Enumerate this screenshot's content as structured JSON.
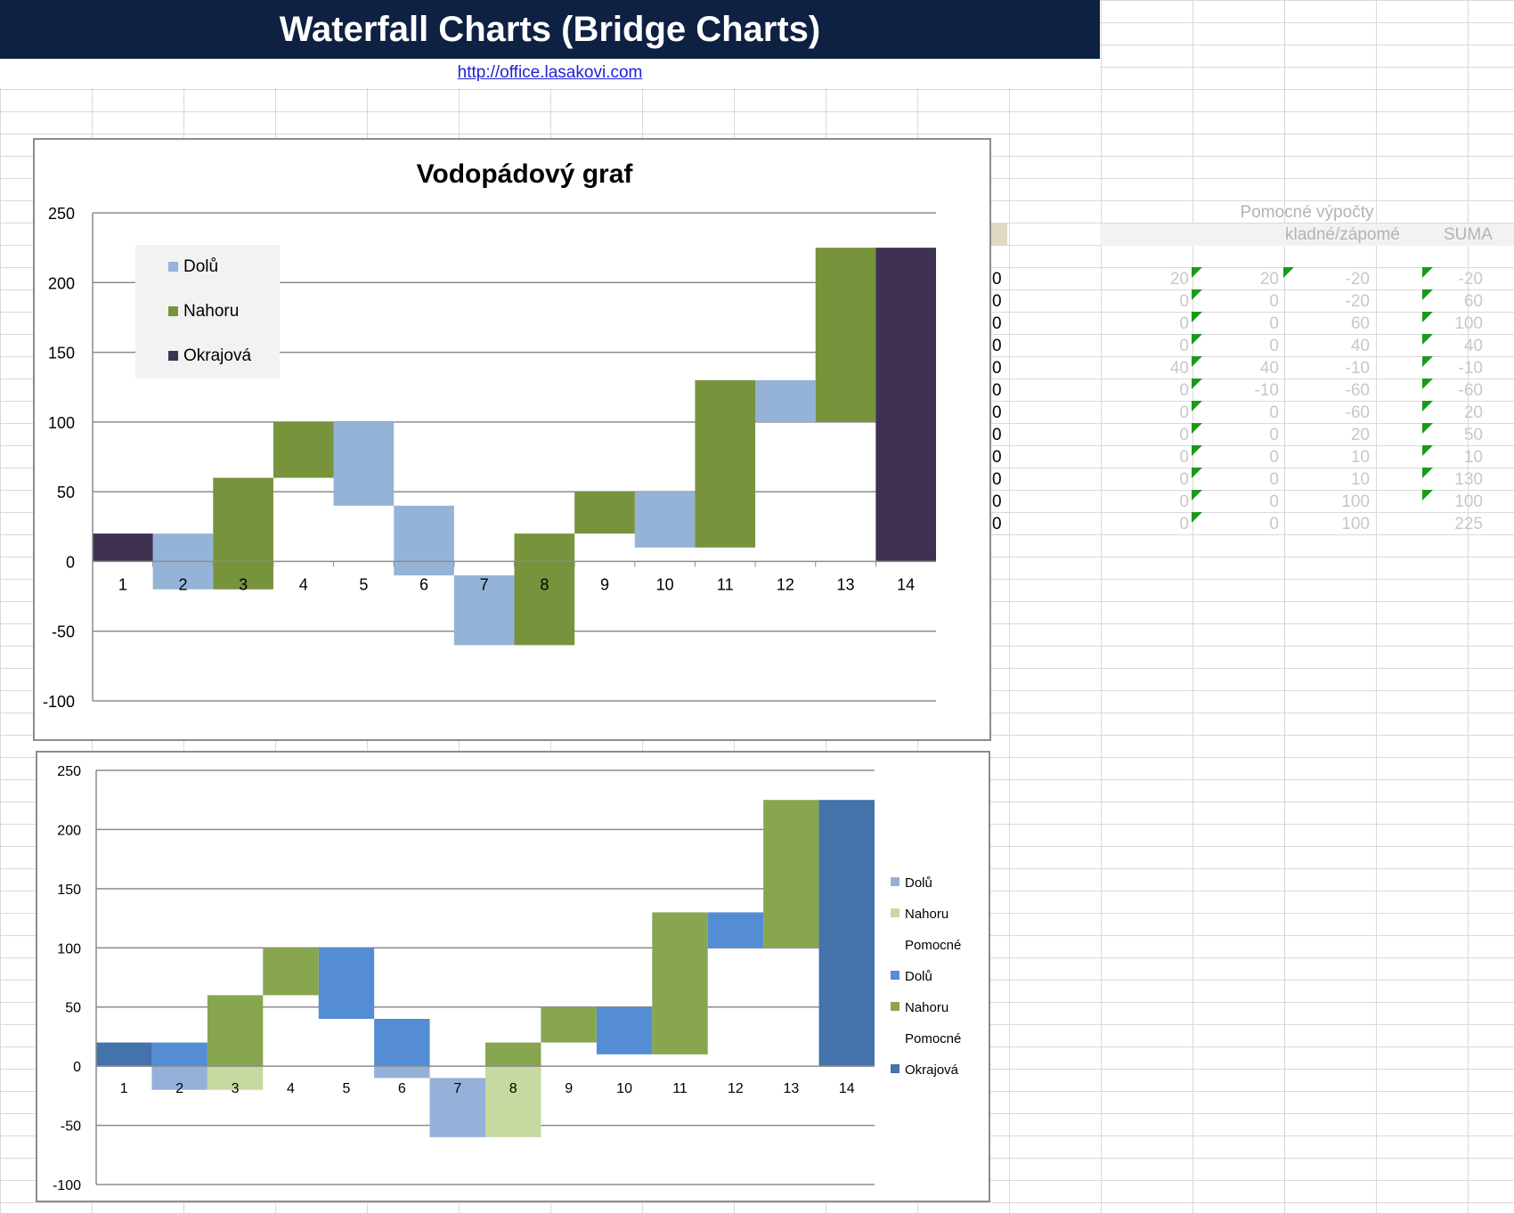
{
  "banner": {
    "title": "Waterfall Charts (Bridge Charts)"
  },
  "link": {
    "url_text": "http://office.lasakovi.com"
  },
  "colors": {
    "banner_bg": "#0f2142",
    "c1_down": "#95b3d7",
    "c1_up": "#77933c",
    "c1_edge": "#3f3151",
    "c2_down_light": "#95b1d9",
    "c2_up_light": "#c5d9a0",
    "c2_down": "#548dd4",
    "c2_up": "#88a550",
    "c2_edge": "#4472aa"
  },
  "helper": {
    "title": "Pomocné výpočty",
    "col_headers": [
      "kladné/zápomé",
      "SUMA"
    ],
    "zeros": [
      "0",
      "0",
      "0",
      "0",
      "0",
      "0",
      "0",
      "0",
      "0",
      "0",
      "0",
      "0"
    ],
    "rows": [
      [
        "20",
        "20",
        "-20",
        "-20"
      ],
      [
        "0",
        "0",
        "-20",
        "60"
      ],
      [
        "0",
        "0",
        "60",
        "100"
      ],
      [
        "0",
        "0",
        "40",
        "40"
      ],
      [
        "40",
        "40",
        "-10",
        "-10"
      ],
      [
        "0",
        "-10",
        "-60",
        "-60"
      ],
      [
        "0",
        "0",
        "-60",
        "20"
      ],
      [
        "0",
        "0",
        "20",
        "50"
      ],
      [
        "0",
        "0",
        "10",
        "10"
      ],
      [
        "0",
        "0",
        "10",
        "130"
      ],
      [
        "0",
        "0",
        "100",
        "100"
      ],
      [
        "0",
        "0",
        "100",
        "225"
      ]
    ]
  },
  "chart_data": [
    {
      "type": "bar",
      "subtype": "stacked-waterfall",
      "title": "Vodopádový graf",
      "categories": [
        "1",
        "2",
        "3",
        "4",
        "5",
        "6",
        "7",
        "8",
        "9",
        "10",
        "11",
        "12",
        "13",
        "14"
      ],
      "ylim": [
        -100,
        250
      ],
      "yticks": [
        "250",
        "200",
        "150",
        "100",
        "50",
        "0",
        "-50",
        "-100"
      ],
      "legend": [
        "Dolů",
        "Nahoru",
        "Okrajová"
      ],
      "legend_position": "top-left",
      "series": [
        {
          "name": "Dolů",
          "ranges": [
            null,
            [
              -20,
              20
            ],
            null,
            null,
            [
              40,
              100
            ],
            [
              -10,
              40
            ],
            [
              -60,
              -10
            ],
            null,
            null,
            [
              10,
              50
            ],
            null,
            [
              100,
              130
            ],
            null,
            null
          ]
        },
        {
          "name": "Nahoru",
          "ranges": [
            null,
            null,
            [
              -20,
              60
            ],
            [
              60,
              100
            ],
            null,
            null,
            null,
            [
              -60,
              20
            ],
            [
              20,
              50
            ],
            null,
            [
              10,
              130
            ],
            null,
            [
              100,
              225
            ],
            null
          ]
        },
        {
          "name": "Okrajová",
          "ranges": [
            [
              0,
              20
            ],
            null,
            null,
            null,
            null,
            null,
            null,
            null,
            null,
            null,
            null,
            null,
            null,
            [
              0,
              225
            ]
          ]
        }
      ]
    },
    {
      "type": "bar",
      "subtype": "stacked-waterfall",
      "title": "",
      "categories": [
        "1",
        "2",
        "3",
        "4",
        "5",
        "6",
        "7",
        "8",
        "9",
        "10",
        "11",
        "12",
        "13",
        "14"
      ],
      "ylim": [
        -100,
        250
      ],
      "yticks": [
        "250",
        "200",
        "150",
        "100",
        "50",
        "0",
        "-50",
        "-100"
      ],
      "legend": [
        "Dolů",
        "Nahoru",
        "Pomocné",
        "Dolů",
        "Nahoru",
        "Pomocné",
        "Okrajová"
      ],
      "legend_position": "right",
      "series": [
        {
          "name": "Dolů",
          "ranges": [
            null,
            [
              -20,
              0
            ],
            null,
            null,
            null,
            [
              -10,
              0
            ],
            [
              -60,
              -10
            ],
            null,
            null,
            null,
            null,
            null,
            null,
            null
          ]
        },
        {
          "name": "Nahoru",
          "ranges": [
            null,
            null,
            [
              -20,
              0
            ],
            null,
            null,
            null,
            null,
            [
              -60,
              0
            ],
            null,
            null,
            null,
            null,
            null,
            null
          ]
        },
        {
          "name": "Dolů",
          "ranges": [
            null,
            [
              0,
              20
            ],
            null,
            null,
            [
              40,
              100
            ],
            [
              0,
              40
            ],
            null,
            null,
            null,
            [
              10,
              50
            ],
            null,
            [
              100,
              130
            ],
            null,
            null
          ]
        },
        {
          "name": "Nahoru",
          "ranges": [
            null,
            null,
            [
              0,
              60
            ],
            [
              60,
              100
            ],
            null,
            null,
            null,
            [
              0,
              20
            ],
            [
              20,
              50
            ],
            null,
            [
              10,
              130
            ],
            null,
            [
              100,
              225
            ],
            null
          ]
        },
        {
          "name": "Okrajová",
          "ranges": [
            [
              0,
              20
            ],
            null,
            null,
            null,
            null,
            null,
            null,
            null,
            null,
            null,
            null,
            null,
            null,
            [
              0,
              225
            ]
          ]
        }
      ]
    }
  ]
}
